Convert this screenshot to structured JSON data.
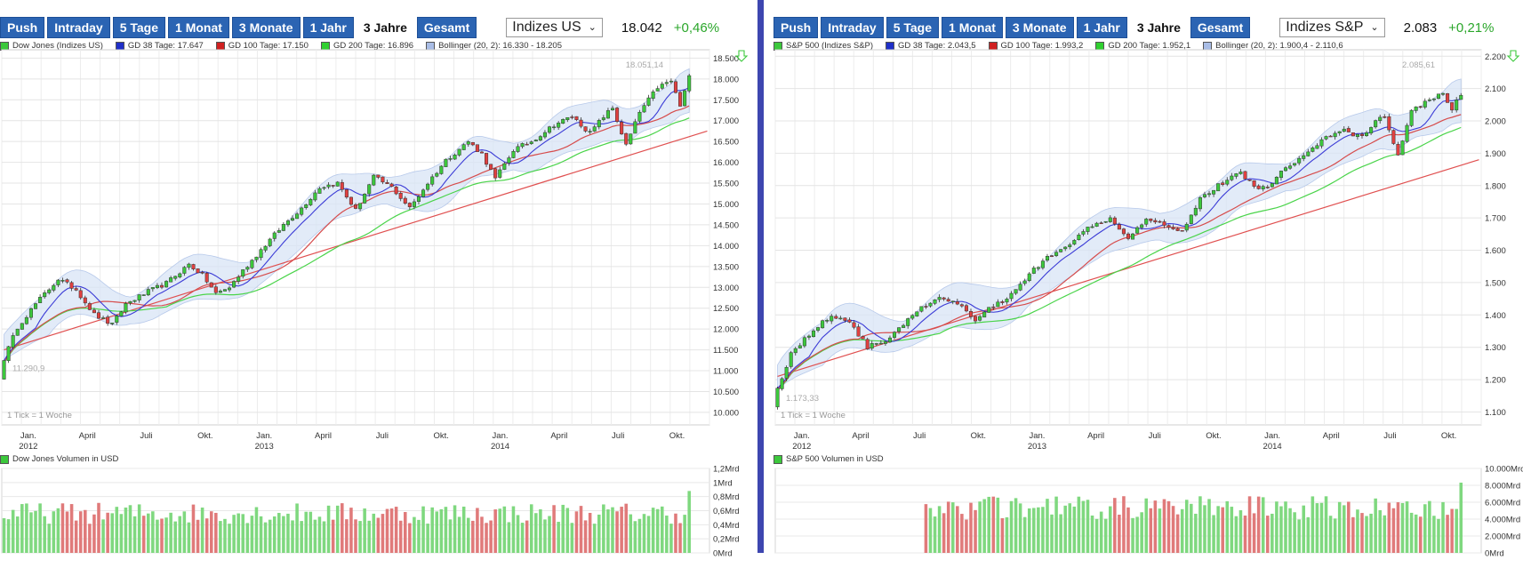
{
  "toolbar_buttons": [
    "Push",
    "Intraday",
    "5 Tage",
    "1 Monat",
    "3 Monate",
    "1 Jahr",
    "3 Jahre",
    "Gesamt"
  ],
  "active_button": "3 Jahre",
  "colors": {
    "button_bg": "#2b64b3",
    "up_candle": "#3cc83c",
    "down_candle": "#e04040",
    "gd38": "#3b3bd6",
    "gd100": "#d64c4c",
    "gd200": "#4ad44a",
    "bollinger": "#d8e4f6",
    "trend": "#e05050",
    "volume_up": "#7fd87f",
    "volume_down": "#e07a7a",
    "positive": "#2aa62a"
  },
  "left": {
    "select_label": "Indizes US",
    "price": "18.042",
    "change": "+0,46%",
    "legend": {
      "main": "Dow Jones (Indizes US)",
      "gd38": "GD 38 Tage: 17.647",
      "gd100": "GD 100 Tage: 17.150",
      "gd200": "GD 200 Tage: 16.896",
      "bollinger": "Bollinger (20, 2): 16.330 - 18.205"
    },
    "volume_title": "Dow Jones Volumen in USD",
    "tick_note": "1 Tick = 1 Woche",
    "chart_data": {
      "type": "candlestick",
      "y_ticks": [
        "10.000",
        "10.500",
        "11.000",
        "11.500",
        "12.000",
        "12.500",
        "13.000",
        "13.500",
        "14.000",
        "14.500",
        "15.000",
        "15.500",
        "16.000",
        "16.500",
        "17.000",
        "17.500",
        "18.000",
        "18.500"
      ],
      "ylim": [
        9700,
        18700
      ],
      "x_ticks": [
        "Jan.",
        "April",
        "Juli",
        "Okt.",
        "Jan.",
        "April",
        "Juli",
        "Okt.",
        "Jan.",
        "April",
        "Juli",
        "Okt."
      ],
      "x_years": [
        [
          "2012",
          0
        ],
        [
          "2013",
          4
        ],
        [
          "2014",
          8
        ]
      ],
      "annotations": {
        "high": "18.051,14",
        "low": "11.290,9"
      },
      "price_path": [
        [
          0,
          11290
        ],
        [
          3,
          12050
        ],
        [
          7,
          12600
        ],
        [
          12,
          13200
        ],
        [
          16,
          12950
        ],
        [
          20,
          12350
        ],
        [
          24,
          12100
        ],
        [
          27,
          12600
        ],
        [
          32,
          12900
        ],
        [
          36,
          13100
        ],
        [
          41,
          13550
        ],
        [
          44,
          13300
        ],
        [
          47,
          12850
        ],
        [
          50,
          13000
        ],
        [
          53,
          13400
        ],
        [
          57,
          13900
        ],
        [
          62,
          14500
        ],
        [
          66,
          14900
        ],
        [
          70,
          15400
        ],
        [
          74,
          15500
        ],
        [
          78,
          14850
        ],
        [
          82,
          15650
        ],
        [
          86,
          15400
        ],
        [
          90,
          14900
        ],
        [
          94,
          15500
        ],
        [
          98,
          16050
        ],
        [
          103,
          16500
        ],
        [
          106,
          16200
        ],
        [
          109,
          15600
        ],
        [
          113,
          16300
        ],
        [
          117,
          16500
        ],
        [
          122,
          16900
        ],
        [
          126,
          17100
        ],
        [
          130,
          16700
        ],
        [
          133,
          17100
        ],
        [
          135,
          17300
        ],
        [
          138,
          16400
        ],
        [
          141,
          17200
        ],
        [
          145,
          17800
        ],
        [
          148,
          17950
        ],
        [
          150,
          17350
        ],
        [
          152,
          18042
        ]
      ],
      "trend_line": [
        [
          0,
          11500
        ],
        [
          156,
          16750
        ]
      ],
      "volume": {
        "y_ticks": [
          "0Mrd",
          "0,2Mrd",
          "0,4Mrd",
          "0,6Mrd",
          "0,8Mrd",
          "1Mrd",
          "1,2Mrd"
        ],
        "ylim": [
          0,
          1.2
        ],
        "start_week": 0,
        "base": 0.55
      }
    }
  },
  "right": {
    "select_label": "Indizes S&P",
    "price": "2.083",
    "change": "+0,21%",
    "legend": {
      "main": "S&P 500 (Indizes S&P)",
      "gd38": "GD 38 Tage: 2.043,5",
      "gd100": "GD 100 Tage: 1.993,2",
      "gd200": "GD 200 Tage: 1.952,1",
      "bollinger": "Bollinger (20, 2): 1.900,4 - 2.110,6"
    },
    "volume_title": "S&P 500 Volumen in USD",
    "tick_note": "1 Tick = 1 Woche",
    "chart_data": {
      "type": "candlestick",
      "y_ticks": [
        "1.100",
        "1.200",
        "1.300",
        "1.400",
        "1.500",
        "1.600",
        "1.700",
        "1.800",
        "1.900",
        "2.000",
        "2.100",
        "2.200"
      ],
      "ylim": [
        1060,
        2220
      ],
      "x_ticks": [
        "Jan.",
        "April",
        "Juli",
        "Okt.",
        "Jan.",
        "April",
        "Juli",
        "Okt.",
        "Jan.",
        "April",
        "Juli",
        "Okt."
      ],
      "x_years": [
        [
          "2012",
          0
        ],
        [
          "2013",
          4
        ],
        [
          "2014",
          8
        ]
      ],
      "annotations": {
        "high": "2.085,61",
        "low": "1.173,33"
      },
      "price_path": [
        [
          0,
          1173
        ],
        [
          3,
          1280
        ],
        [
          7,
          1340
        ],
        [
          12,
          1400
        ],
        [
          16,
          1380
        ],
        [
          20,
          1300
        ],
        [
          24,
          1320
        ],
        [
          27,
          1360
        ],
        [
          32,
          1420
        ],
        [
          36,
          1450
        ],
        [
          41,
          1430
        ],
        [
          44,
          1380
        ],
        [
          47,
          1420
        ],
        [
          50,
          1440
        ],
        [
          53,
          1480
        ],
        [
          57,
          1540
        ],
        [
          62,
          1600
        ],
        [
          66,
          1630
        ],
        [
          70,
          1680
        ],
        [
          74,
          1700
        ],
        [
          78,
          1640
        ],
        [
          82,
          1700
        ],
        [
          86,
          1680
        ],
        [
          90,
          1660
        ],
        [
          94,
          1760
        ],
        [
          98,
          1800
        ],
        [
          103,
          1840
        ],
        [
          106,
          1800
        ],
        [
          109,
          1790
        ],
        [
          113,
          1860
        ],
        [
          117,
          1890
        ],
        [
          122,
          1950
        ],
        [
          126,
          1970
        ],
        [
          130,
          1950
        ],
        [
          133,
          2000
        ],
        [
          135,
          2010
        ],
        [
          138,
          1900
        ],
        [
          141,
          2030
        ],
        [
          145,
          2070
        ],
        [
          148,
          2080
        ],
        [
          150,
          2040
        ],
        [
          152,
          2083
        ]
      ],
      "trend_line": [
        [
          0,
          1210
        ],
        [
          156,
          1880
        ]
      ],
      "volume": {
        "y_ticks": [
          "0Mrd",
          "2.000Mrd",
          "4.000Mrd",
          "6.000Mrd",
          "8.000Mrd",
          "10.000Mrd"
        ],
        "ylim": [
          0,
          10000
        ],
        "start_week": 33,
        "base": 5200
      }
    }
  }
}
